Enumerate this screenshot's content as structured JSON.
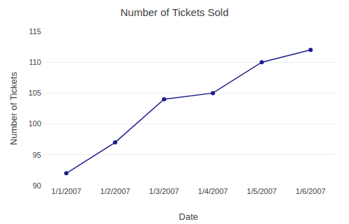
{
  "chart_data": {
    "type": "line",
    "title": "Number of Tickets Sold",
    "x_label": "Date",
    "y_label": "Number of Tickets",
    "categories": [
      "1/1/2007",
      "1/2/2007",
      "1/3/2007",
      "1/4/2007",
      "1/5/2007",
      "1/6/2007"
    ],
    "values": [
      92,
      97,
      104,
      105,
      110,
      112
    ],
    "color": "#1C1C8C",
    "marker": "circle",
    "line_style": "solid",
    "ylim": [
      90,
      115
    ],
    "yticks": [
      90,
      95,
      100,
      105,
      110,
      115
    ],
    "grid": true
  }
}
